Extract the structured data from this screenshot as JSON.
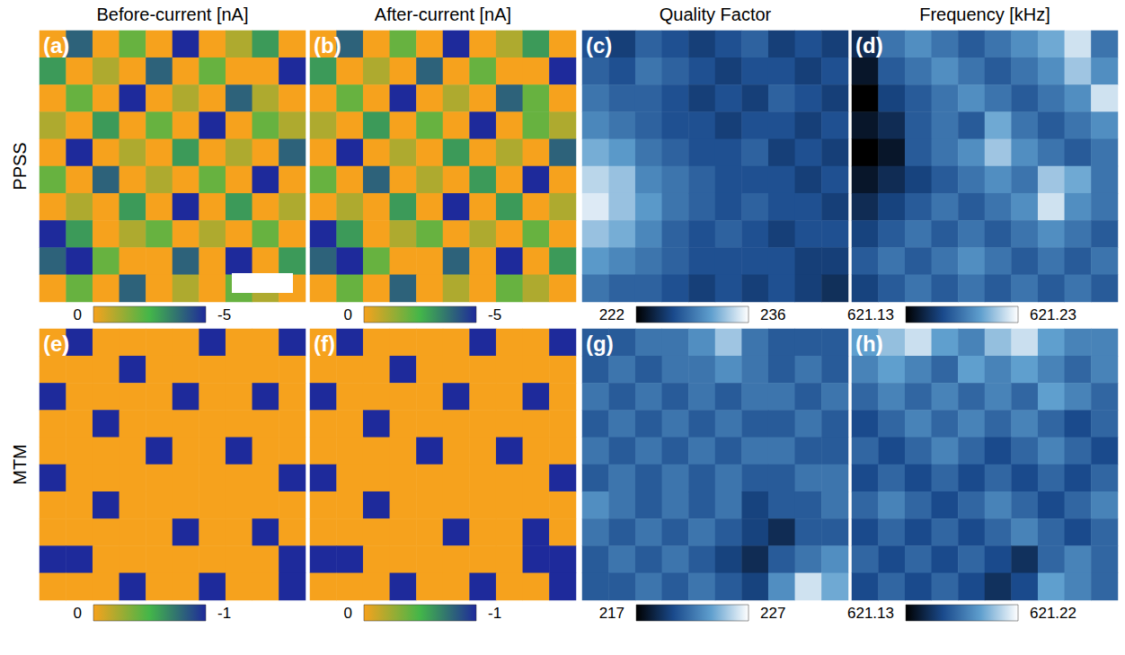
{
  "column_titles": [
    "Before-current [nA]",
    "After-current [nA]",
    "Quality Factor",
    "Frequency [kHz]"
  ],
  "row_labels": [
    "PPSS",
    "MTM"
  ],
  "chart_data": [
    {
      "type": "heatmap",
      "label": "(a)",
      "tick_labels": false,
      "color_range": [
        0,
        -5
      ],
      "color_ticks": [
        0,
        -5
      ],
      "color": [
        "#f6a21d",
        "#43b649",
        "#1e2a9b"
      ],
      "cells": [
        [
          0,
          -4,
          0,
          -2,
          0,
          -5,
          0,
          -1,
          -3,
          0
        ],
        [
          -3,
          0,
          -1,
          0,
          -4,
          0,
          -2,
          0,
          0,
          -5
        ],
        [
          0,
          -2,
          0,
          -5,
          0,
          -1,
          0,
          -4,
          -1,
          0
        ],
        [
          -1,
          0,
          -3,
          0,
          -2,
          0,
          -5,
          0,
          -2,
          -1
        ],
        [
          0,
          -5,
          0,
          -1,
          0,
          -3,
          0,
          -1,
          0,
          -4
        ],
        [
          -2,
          0,
          -4,
          0,
          -1,
          0,
          -2,
          0,
          -5,
          0
        ],
        [
          0,
          -1,
          0,
          -3,
          0,
          -5,
          0,
          -3,
          0,
          -1
        ],
        [
          -5,
          -3,
          0,
          -1,
          -2,
          0,
          -1,
          0,
          -2,
          0
        ],
        [
          -4,
          -5,
          -2,
          0,
          0,
          -4,
          0,
          -5,
          0,
          -3
        ],
        [
          0,
          -2,
          0,
          -4,
          0,
          -1,
          0,
          -2,
          -1,
          0
        ]
      ]
    },
    {
      "type": "heatmap",
      "label": "(b)",
      "tick_labels": false,
      "color_range": [
        0,
        -5
      ],
      "color_ticks": [
        0,
        -5
      ],
      "color": [
        "#f6a21d",
        "#43b649",
        "#1e2a9b"
      ],
      "cells": [
        [
          0,
          -4,
          0,
          -2,
          0,
          -5,
          0,
          -1,
          -3,
          0
        ],
        [
          -3,
          0,
          -1,
          0,
          -4,
          0,
          -2,
          0,
          0,
          -5
        ],
        [
          0,
          -2,
          0,
          -5,
          0,
          -1,
          0,
          -4,
          -2,
          0
        ],
        [
          -1,
          0,
          -3,
          0,
          -2,
          0,
          -5,
          0,
          -2,
          -1
        ],
        [
          0,
          -5,
          0,
          -1,
          0,
          -3,
          0,
          -1,
          0,
          -4
        ],
        [
          -2,
          0,
          -4,
          0,
          -1,
          0,
          -3,
          0,
          -5,
          0
        ],
        [
          0,
          -1,
          0,
          -3,
          0,
          -5,
          0,
          -3,
          0,
          -1
        ],
        [
          -5,
          -3,
          0,
          -1,
          -2,
          0,
          -1,
          0,
          -2,
          0
        ],
        [
          -4,
          -5,
          -2,
          0,
          0,
          -4,
          0,
          -5,
          0,
          -3
        ],
        [
          0,
          -2,
          0,
          -4,
          0,
          -1,
          0,
          -2,
          -1,
          0
        ]
      ]
    },
    {
      "type": "heatmap",
      "label": "(c)",
      "tick_labels": false,
      "color_range": [
        222,
        236
      ],
      "color_ticks": [
        222,
        236
      ],
      "color": [
        "#000000",
        "#1a4a8c",
        "#5f9fce",
        "#ffffff"
      ],
      "cells": [
        [
          227,
          226,
          228,
          227,
          226,
          227,
          228,
          226,
          227,
          226
        ],
        [
          228,
          227,
          229,
          228,
          227,
          226,
          227,
          227,
          226,
          227
        ],
        [
          229,
          228,
          228,
          227,
          226,
          227,
          226,
          228,
          227,
          226
        ],
        [
          230,
          229,
          228,
          227,
          227,
          226,
          227,
          227,
          226,
          227
        ],
        [
          232,
          231,
          229,
          228,
          227,
          227,
          228,
          226,
          227,
          226
        ],
        [
          234,
          233,
          230,
          229,
          228,
          227,
          227,
          227,
          226,
          227
        ],
        [
          235,
          233,
          231,
          229,
          228,
          227,
          228,
          227,
          227,
          226
        ],
        [
          233,
          232,
          230,
          228,
          227,
          228,
          227,
          226,
          227,
          227
        ],
        [
          231,
          230,
          229,
          228,
          227,
          227,
          227,
          227,
          226,
          226
        ],
        [
          229,
          228,
          228,
          227,
          226,
          227,
          226,
          227,
          226,
          225
        ]
      ]
    },
    {
      "type": "heatmap",
      "label": "(d)",
      "tick_labels": false,
      "color_range": [
        621.13,
        621.23
      ],
      "color_ticks": [
        621.13,
        621.23
      ],
      "color": [
        "#000000",
        "#1a4a8c",
        "#5f9fce",
        "#ffffff"
      ],
      "cells": [
        [
          621.15,
          621.18,
          621.19,
          621.18,
          621.17,
          621.18,
          621.19,
          621.2,
          621.22,
          621.18
        ],
        [
          621.14,
          621.17,
          621.18,
          621.19,
          621.18,
          621.17,
          621.18,
          621.19,
          621.21,
          621.19
        ],
        [
          621.13,
          621.16,
          621.17,
          621.18,
          621.19,
          621.18,
          621.17,
          621.18,
          621.19,
          621.22
        ],
        [
          621.14,
          621.15,
          621.17,
          621.18,
          621.17,
          621.2,
          621.18,
          621.17,
          621.18,
          621.19
        ],
        [
          621.13,
          621.14,
          621.17,
          621.18,
          621.19,
          621.21,
          621.19,
          621.18,
          621.17,
          621.18
        ],
        [
          621.14,
          621.15,
          621.16,
          621.17,
          621.18,
          621.19,
          621.18,
          621.21,
          621.2,
          621.18
        ],
        [
          621.15,
          621.16,
          621.17,
          621.18,
          621.17,
          621.18,
          621.19,
          621.22,
          621.19,
          621.18
        ],
        [
          621.16,
          621.17,
          621.18,
          621.17,
          621.18,
          621.17,
          621.18,
          621.19,
          621.18,
          621.17
        ],
        [
          621.17,
          621.18,
          621.17,
          621.18,
          621.19,
          621.18,
          621.17,
          621.18,
          621.17,
          621.18
        ],
        [
          621.16,
          621.17,
          621.18,
          621.17,
          621.18,
          621.17,
          621.18,
          621.17,
          621.18,
          621.17
        ]
      ]
    },
    {
      "type": "heatmap",
      "label": "(e)",
      "tick_labels": false,
      "color_range": [
        0,
        -1
      ],
      "color_ticks": [
        0,
        -1
      ],
      "color": [
        "#f6a21d",
        "#43b649",
        "#1e2a9b"
      ],
      "cells": [
        [
          0,
          -1,
          0,
          0,
          0,
          0,
          -1,
          0,
          0,
          -1
        ],
        [
          0,
          0,
          0,
          -1,
          0,
          0,
          0,
          0,
          0,
          0
        ],
        [
          -1,
          0,
          0,
          0,
          0,
          -1,
          0,
          0,
          -1,
          0
        ],
        [
          0,
          0,
          -1,
          0,
          0,
          0,
          0,
          0,
          0,
          0
        ],
        [
          0,
          0,
          0,
          0,
          -1,
          0,
          0,
          -1,
          0,
          0
        ],
        [
          -1,
          0,
          0,
          0,
          0,
          0,
          0,
          0,
          0,
          -1
        ],
        [
          0,
          0,
          -1,
          0,
          0,
          0,
          0,
          0,
          0,
          0
        ],
        [
          0,
          0,
          0,
          0,
          0,
          -1,
          0,
          0,
          -1,
          0
        ],
        [
          -1,
          -1,
          0,
          0,
          0,
          0,
          0,
          0,
          0,
          -1
        ],
        [
          0,
          0,
          0,
          -1,
          0,
          0,
          -1,
          0,
          0,
          -1
        ]
      ]
    },
    {
      "type": "heatmap",
      "label": "(f)",
      "tick_labels": false,
      "color_range": [
        0,
        -1
      ],
      "color_ticks": [
        0,
        -1
      ],
      "color": [
        "#f6a21d",
        "#43b649",
        "#1e2a9b"
      ],
      "cells": [
        [
          0,
          -1,
          0,
          0,
          0,
          0,
          -1,
          0,
          0,
          -1
        ],
        [
          0,
          0,
          0,
          -1,
          0,
          0,
          0,
          0,
          0,
          0
        ],
        [
          -1,
          0,
          0,
          0,
          0,
          -1,
          0,
          0,
          -1,
          0
        ],
        [
          0,
          0,
          -1,
          0,
          0,
          0,
          0,
          0,
          0,
          0
        ],
        [
          0,
          0,
          0,
          0,
          -1,
          0,
          0,
          -1,
          0,
          0
        ],
        [
          -1,
          0,
          0,
          0,
          0,
          0,
          0,
          0,
          0,
          -1
        ],
        [
          0,
          0,
          -1,
          0,
          0,
          0,
          0,
          0,
          0,
          0
        ],
        [
          0,
          0,
          0,
          0,
          0,
          -1,
          0,
          0,
          -1,
          0
        ],
        [
          -1,
          -1,
          0,
          0,
          0,
          0,
          0,
          0,
          -1,
          -1
        ],
        [
          0,
          0,
          0,
          -1,
          0,
          0,
          -1,
          0,
          0,
          -1
        ]
      ]
    },
    {
      "type": "heatmap",
      "label": "(g)",
      "tick_labels": false,
      "color_range": [
        217,
        227
      ],
      "color_ticks": [
        217,
        227
      ],
      "color": [
        "#000000",
        "#1a4a8c",
        "#5f9fce",
        "#ffffff"
      ],
      "cells": [
        [
          221,
          221,
          222,
          222,
          223,
          225,
          222,
          221,
          221,
          221
        ],
        [
          221,
          222,
          221,
          222,
          222,
          223,
          222,
          221,
          222,
          221
        ],
        [
          222,
          221,
          222,
          221,
          222,
          221,
          222,
          222,
          221,
          222
        ],
        [
          221,
          222,
          221,
          222,
          221,
          222,
          221,
          221,
          222,
          221
        ],
        [
          222,
          221,
          222,
          221,
          222,
          221,
          222,
          222,
          221,
          221
        ],
        [
          221,
          222,
          221,
          222,
          221,
          222,
          221,
          221,
          222,
          222
        ],
        [
          223,
          222,
          221,
          222,
          221,
          222,
          220,
          221,
          221,
          222
        ],
        [
          222,
          221,
          222,
          221,
          222,
          221,
          220,
          219,
          221,
          221
        ],
        [
          221,
          222,
          221,
          222,
          221,
          220,
          219,
          221,
          222,
          223
        ],
        [
          221,
          221,
          222,
          221,
          222,
          221,
          220,
          223,
          226,
          224
        ]
      ]
    },
    {
      "type": "heatmap",
      "label": "(h)",
      "tick_labels": false,
      "color_range": [
        621.13,
        621.22
      ],
      "color_ticks": [
        621.13,
        621.22
      ],
      "color": [
        "#000000",
        "#1a4a8c",
        "#5f9fce",
        "#ffffff"
      ],
      "cells": [
        [
          621.19,
          621.2,
          621.21,
          621.19,
          621.18,
          621.2,
          621.21,
          621.19,
          621.18,
          621.18
        ],
        [
          621.18,
          621.19,
          621.18,
          621.17,
          621.19,
          621.18,
          621.19,
          621.18,
          621.17,
          621.18
        ],
        [
          621.17,
          621.18,
          621.17,
          621.18,
          621.17,
          621.18,
          621.17,
          621.19,
          621.18,
          621.17
        ],
        [
          621.16,
          621.17,
          621.18,
          621.17,
          621.18,
          621.17,
          621.18,
          621.17,
          621.16,
          621.17
        ],
        [
          621.17,
          621.16,
          621.17,
          621.18,
          621.17,
          621.16,
          621.17,
          621.18,
          621.17,
          621.16
        ],
        [
          621.16,
          621.17,
          621.16,
          621.17,
          621.16,
          621.17,
          621.16,
          621.17,
          621.16,
          621.17
        ],
        [
          621.17,
          621.18,
          621.17,
          621.16,
          621.17,
          621.18,
          621.17,
          621.16,
          621.17,
          621.18
        ],
        [
          621.16,
          621.17,
          621.16,
          621.17,
          621.16,
          621.17,
          621.18,
          621.17,
          621.16,
          621.17
        ],
        [
          621.17,
          621.16,
          621.17,
          621.16,
          621.17,
          621.16,
          621.15,
          621.17,
          621.18,
          621.17
        ],
        [
          621.16,
          621.17,
          621.16,
          621.17,
          621.16,
          621.15,
          621.16,
          621.19,
          621.18,
          621.17
        ]
      ]
    }
  ]
}
